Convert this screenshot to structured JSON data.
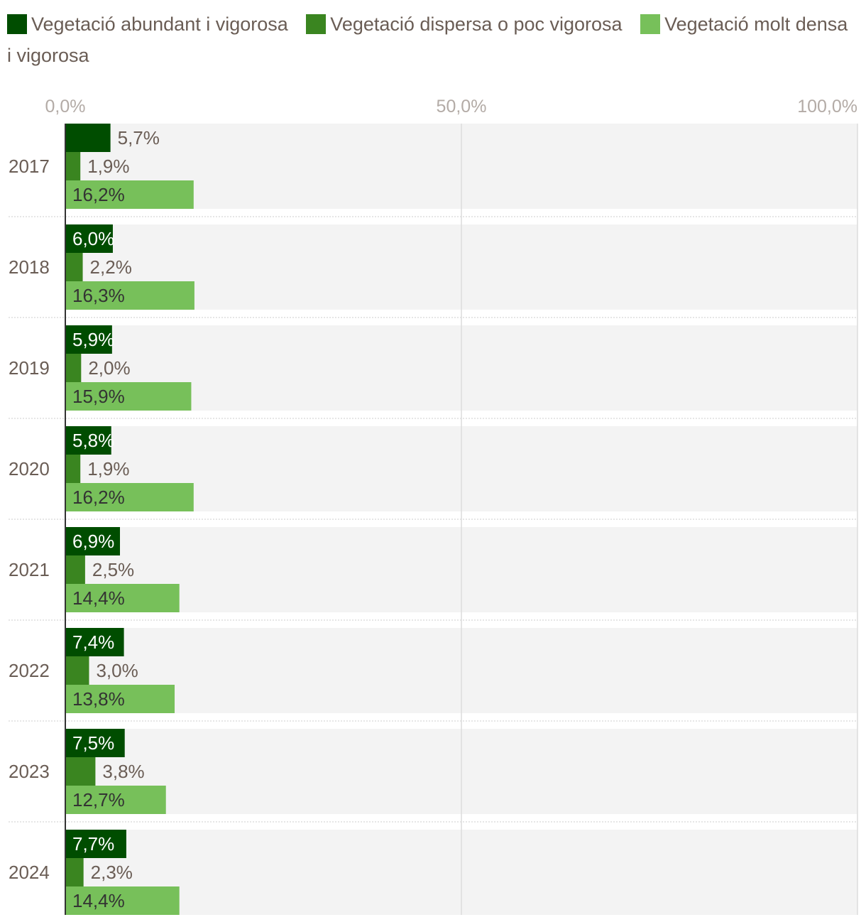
{
  "chart_data": {
    "type": "bar",
    "orientation": "horizontal",
    "categories": [
      "2017",
      "2018",
      "2019",
      "2020",
      "2021",
      "2022",
      "2023",
      "2024"
    ],
    "series": [
      {
        "name": "Vegetació abundant i vigorosa",
        "color": "#004d00",
        "values": [
          5.7,
          6.0,
          5.9,
          5.8,
          6.9,
          7.4,
          7.5,
          7.7
        ],
        "labels": [
          "5,7%",
          "6,0%",
          "5,9%",
          "5,8%",
          "6,9%",
          "7,4%",
          "7,5%",
          "7,7%"
        ]
      },
      {
        "name": "Vegetació dispersa o poc vigorosa",
        "color": "#3a8520",
        "values": [
          1.9,
          2.2,
          2.0,
          1.9,
          2.5,
          3.0,
          3.8,
          2.3
        ],
        "labels": [
          "1,9%",
          "2,2%",
          "2,0%",
          "1,9%",
          "2,5%",
          "3,0%",
          "3,8%",
          "2,3%"
        ]
      },
      {
        "name": "Vegetació molt densa i vigorosa",
        "color": "#77c05a",
        "values": [
          16.2,
          16.3,
          15.9,
          16.2,
          14.4,
          13.8,
          12.7,
          14.4
        ],
        "labels": [
          "16,2%",
          "16,3%",
          "15,9%",
          "16,2%",
          "14,4%",
          "13,8%",
          "12,7%",
          "14,4%"
        ]
      }
    ],
    "xlim": [
      0,
      100
    ],
    "x_ticks": [
      0,
      50,
      100
    ],
    "x_tick_labels": [
      "0,0%",
      "50,0%",
      "100,0%"
    ],
    "grid": true,
    "legend_position": "top-left"
  },
  "colors": {
    "row_background": "#f3f3f3",
    "separator": "#cccccc",
    "gridline": "#dcdcdc",
    "axis": "#333333",
    "text": "#6a5d55",
    "tick_text": "#b3aba6"
  }
}
